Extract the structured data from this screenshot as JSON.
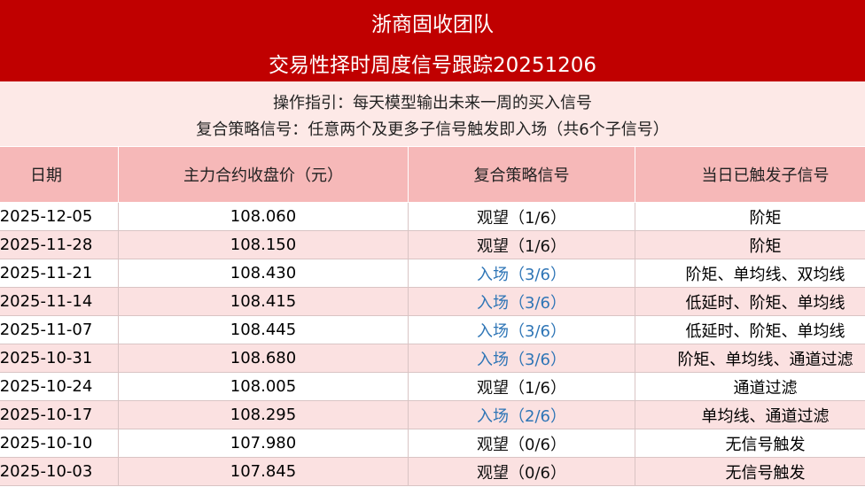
{
  "header": {
    "title": "浙商固收团队",
    "subtitle": "交易性择时周度信号跟踪20251206"
  },
  "notes": [
    "操作指引：每天模型输出未来一周的买入信号",
    "复合策略信号：任意两个及更多子信号触发即入场（共6个子信号）"
  ],
  "table": {
    "columns": [
      "日期",
      "主力合约收盘价（元）",
      "复合策略信号",
      "当日已触发子信号"
    ],
    "rows": [
      [
        "2025-12-05",
        "108.060",
        "观望（1/6）",
        "阶矩"
      ],
      [
        "2025-11-28",
        "108.150",
        "观望（1/6）",
        "阶矩"
      ],
      [
        "2025-11-21",
        "108.430",
        "入场（3/6）",
        "阶矩、单均线、双均线"
      ],
      [
        "2025-11-14",
        "108.415",
        "入场（3/6）",
        "低延时、阶矩、单均线"
      ],
      [
        "2025-11-07",
        "108.445",
        "入场（3/6）",
        "低延时、阶矩、单均线"
      ],
      [
        "2025-10-31",
        "108.680",
        "入场（3/6）",
        "阶矩、单均线、通道过滤"
      ],
      [
        "2025-10-24",
        "108.005",
        "观望（1/6）",
        "通道过滤"
      ],
      [
        "2025-10-17",
        "108.295",
        "入场（2/6）",
        "单均线、通道过滤"
      ],
      [
        "2025-10-10",
        "107.980",
        "观望（0/6）",
        "无信号触发"
      ],
      [
        "2025-10-03",
        "107.845",
        "观望（0/6）",
        "无信号触发"
      ]
    ],
    "signal_colors": [
      "#111111",
      "#111111",
      "#2e75b6",
      "#2e75b6",
      "#2e75b6",
      "#2e75b6",
      "#111111",
      "#2e75b6",
      "#111111",
      "#111111"
    ]
  }
}
